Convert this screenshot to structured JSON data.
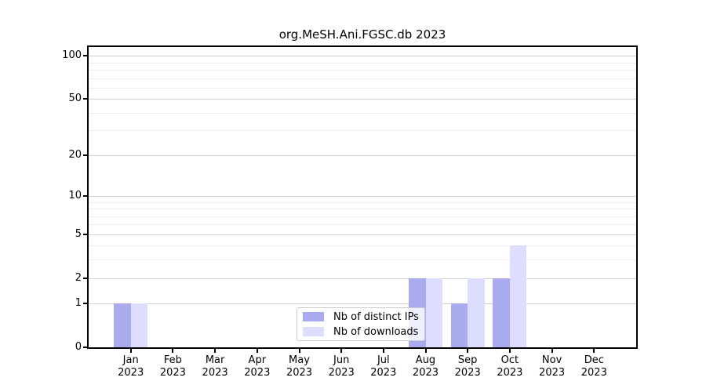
{
  "chart_data": {
    "type": "bar",
    "title": "org.MeSH.Ani.FGSC.db 2023",
    "categories": [
      "Jan",
      "Feb",
      "Mar",
      "Apr",
      "May",
      "Jun",
      "Jul",
      "Aug",
      "Sep",
      "Oct",
      "Nov",
      "Dec"
    ],
    "x_year": "2023",
    "series": [
      {
        "name": "Nb of distinct IPs",
        "color": "#aaaaee",
        "values": [
          1,
          0,
          0,
          0,
          0,
          0,
          0,
          2,
          1,
          2,
          0,
          0
        ]
      },
      {
        "name": "Nb of downloads",
        "color": "#ddddff",
        "values": [
          1,
          0,
          0,
          0,
          0,
          0,
          0,
          2,
          2,
          4,
          0,
          0
        ]
      }
    ],
    "xlabel": "",
    "ylabel": "",
    "yscale": "log1p",
    "ylim": [
      0,
      115
    ],
    "yticks": [
      0,
      1,
      2,
      5,
      10,
      20,
      50,
      100
    ],
    "minor_gridlines": [
      3,
      4,
      6,
      7,
      8,
      9,
      30,
      40,
      60,
      70,
      80,
      90
    ],
    "grid": "on",
    "legend_position": "bottom-center"
  },
  "colors": {
    "axis": "#000000",
    "major_grid": "#cfcfcf",
    "minor_grid": "#ededed",
    "background": "#ffffff"
  }
}
